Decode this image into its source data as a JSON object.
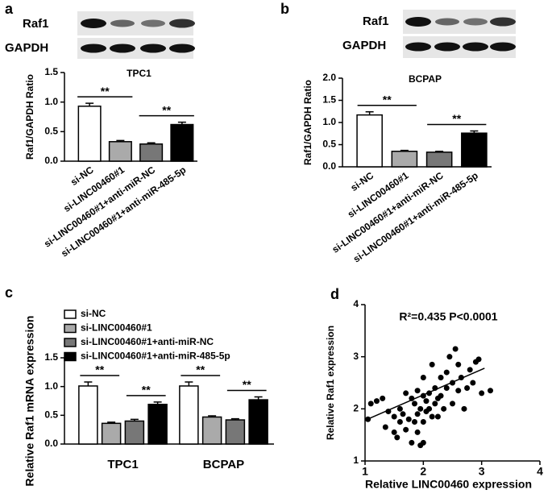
{
  "panel_letters": [
    "a",
    "b",
    "c",
    "d"
  ],
  "blots": [
    {
      "labels": [
        "Raf1",
        "GAPDH"
      ]
    },
    {
      "labels": [
        "Raf1",
        "GAPDH"
      ]
    }
  ],
  "chart_data": [
    {
      "type": "bar",
      "title": "TPC1",
      "y_label": "Raf1/GAPDH Ratio",
      "categories": [
        "si-NC",
        "si-LINC00460#1",
        "si-LINC00460#1+anti-miR-NC",
        "si-LINC00460#1+anti-miR-485-5p"
      ],
      "values": [
        0.93,
        0.33,
        0.29,
        0.62
      ],
      "errors": [
        0.05,
        0.02,
        0.02,
        0.04
      ],
      "colors": [
        "#ffffff",
        "#aaaaaa",
        "#777777",
        "#000000"
      ],
      "ylim": [
        0,
        1.5
      ],
      "yticks": [
        {
          "value": 0,
          "label": "0.0"
        },
        0.5,
        {
          "value": 1,
          "label": "1.0"
        },
        1.5
      ],
      "significance": [
        "**",
        "**"
      ]
    },
    {
      "type": "bar",
      "title": "BCPAP",
      "y_label": "Raf1/GAPDH Ratio",
      "categories": [
        "si-NC",
        "si-LINC00460#1",
        "si-LINC00460#1+anti-miR-NC",
        "si-LINC00460#1+anti-miR-485-5p"
      ],
      "values": [
        1.17,
        0.35,
        0.33,
        0.76
      ],
      "errors": [
        0.07,
        0.02,
        0.02,
        0.05
      ],
      "colors": [
        "#ffffff",
        "#aaaaaa",
        "#777777",
        "#000000"
      ],
      "ylim": [
        0,
        2
      ],
      "yticks": [
        {
          "value": 0,
          "label": "0.0"
        },
        0.5,
        {
          "value": 1,
          "label": "1.0"
        },
        1.5,
        {
          "value": 2,
          "label": "2.0"
        }
      ],
      "significance": [
        "**",
        "**"
      ]
    },
    {
      "type": "grouped_bar",
      "y_label": "Relative Raf1 mRNA expression",
      "categories": [
        "TPC1",
        "BCPAP"
      ],
      "series": [
        {
          "name": "si-NC",
          "color": "#ffffff",
          "values": [
            1.01,
            1.01
          ],
          "errors": [
            0.07,
            0.07
          ]
        },
        {
          "name": "si-LINC00460#1",
          "color": "#aaaaaa",
          "values": [
            0.36,
            0.47
          ],
          "errors": [
            0.02,
            0.02
          ]
        },
        {
          "name": "si-LINC00460#1+anti-miR-NC",
          "color": "#777777",
          "values": [
            0.4,
            0.42
          ],
          "errors": [
            0.03,
            0.02
          ]
        },
        {
          "name": "si-LINC00460#1+anti-miR-485-5p",
          "color": "#000000",
          "values": [
            0.69,
            0.77
          ],
          "errors": [
            0.04,
            0.05
          ]
        }
      ],
      "ylim": [
        0,
        1.5
      ],
      "yticks": [
        {
          "value": 0,
          "label": "0.0"
        },
        0.5,
        {
          "value": 1,
          "label": "1.0"
        },
        1.5
      ],
      "significance": [
        "**",
        "**",
        "**",
        "**"
      ]
    },
    {
      "type": "scatter",
      "annotation": "R²=0.435 P<0.0001",
      "x_label": "Relative LINC00460 expression",
      "y_label": "Relative Raf1 expression",
      "x": [
        1.05,
        1.1,
        1.2,
        1.3,
        1.35,
        1.4,
        1.5,
        1.5,
        1.55,
        1.6,
        1.65,
        1.7,
        1.7,
        1.75,
        1.8,
        1.8,
        1.85,
        1.85,
        1.9,
        1.9,
        1.9,
        1.95,
        1.95,
        2.0,
        2.0,
        2.0,
        2.05,
        2.05,
        2.1,
        2.1,
        2.15,
        2.15,
        2.2,
        2.2,
        2.25,
        2.25,
        2.3,
        2.3,
        2.35,
        2.4,
        2.4,
        2.45,
        2.5,
        2.5,
        2.55,
        2.6,
        2.6,
        2.65,
        2.7,
        2.75,
        2.8,
        2.85,
        2.9,
        2.95,
        3.0,
        3.15,
        2.0,
        1.6
      ],
      "y": [
        1.8,
        2.1,
        2.15,
        2.2,
        1.65,
        1.95,
        1.85,
        1.55,
        1.45,
        1.75,
        1.9,
        2.3,
        1.6,
        1.8,
        1.35,
        2.2,
        1.75,
        2.1,
        1.55,
        1.9,
        2.35,
        1.3,
        2.0,
        2.25,
        1.35,
        2.6,
        1.95,
        2.15,
        2.3,
        2.0,
        2.85,
        1.85,
        2.1,
        2.4,
        2.2,
        1.85,
        2.6,
        2.25,
        2.0,
        2.4,
        2.7,
        3.0,
        2.1,
        2.5,
        3.15,
        2.35,
        2.85,
        2.6,
        2.0,
        2.4,
        2.75,
        2.5,
        2.9,
        2.95,
        2.3,
        2.35,
        1.75,
        2.0
      ],
      "fit": {
        "x": [
          1,
          3.05
        ],
        "y": [
          1.78,
          2.78
        ]
      },
      "xlim": [
        1,
        4
      ],
      "ylim": [
        1,
        4
      ],
      "xticks": [
        1,
        2,
        3,
        4
      ],
      "yticks": [
        1,
        2,
        3,
        4
      ]
    }
  ]
}
